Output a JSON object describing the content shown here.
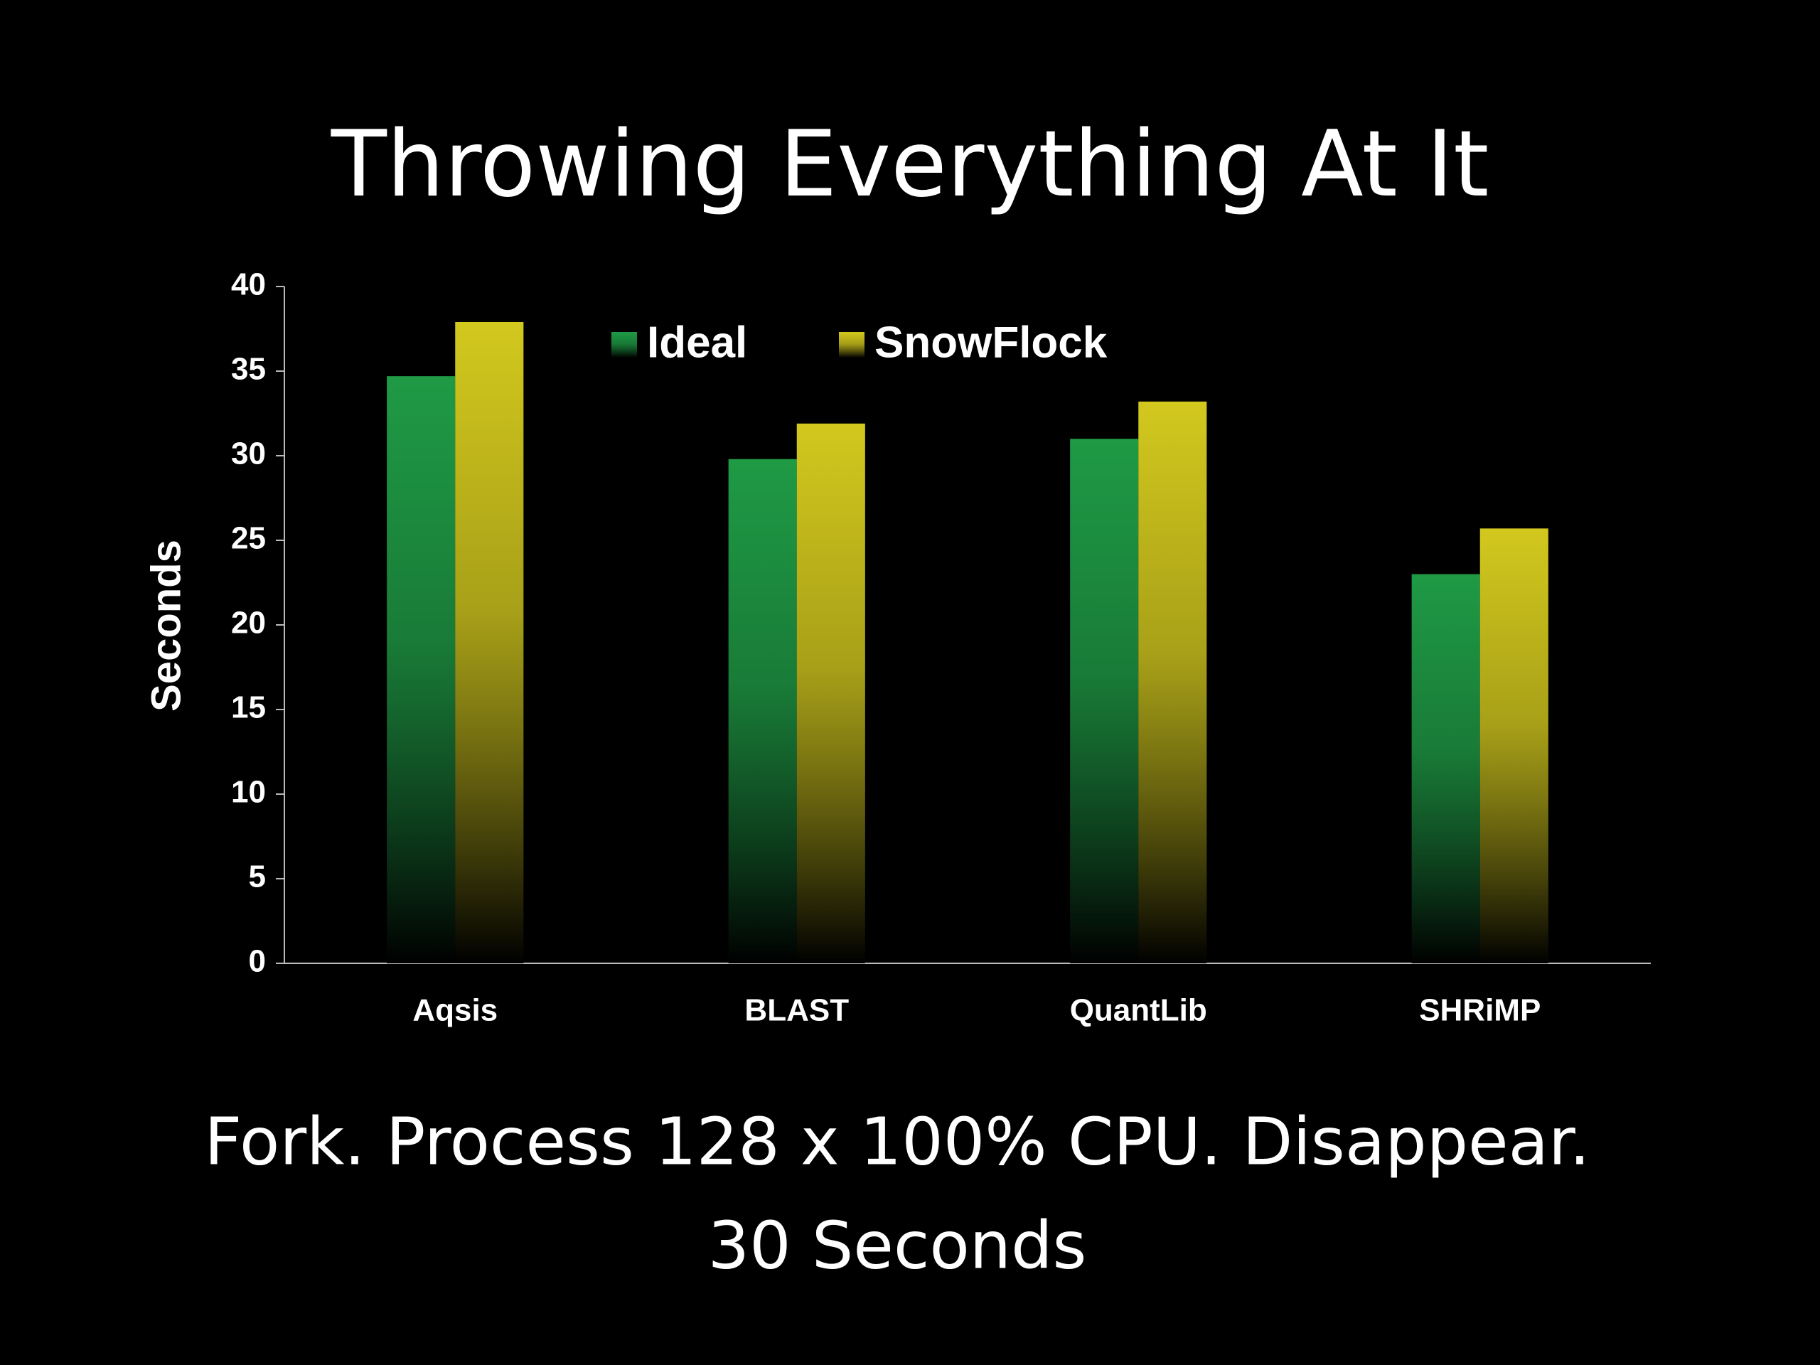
{
  "chart_data": {
    "type": "bar",
    "title": "Throwing Everything At It",
    "y_label": "Seconds",
    "categories": [
      "Aqsis",
      "BLAST",
      "QuantLib",
      "SHRiMP"
    ],
    "series": [
      {
        "name": "Ideal",
        "color": "#1f9a45",
        "values": [
          34.7,
          29.8,
          31,
          23
        ]
      },
      {
        "name": "SnowFlock",
        "color": "#d2c81e",
        "values": [
          37.9,
          31.9,
          33.2,
          25.7
        ]
      }
    ],
    "ylim": [
      0,
      40
    ],
    "yticks": [
      0,
      5,
      10,
      15,
      20,
      25,
      30,
      35,
      40
    ],
    "legend": "top",
    "notes": [
      "Fork. Process 128 x 100% CPU. Disappear.",
      "30 Seconds"
    ]
  }
}
